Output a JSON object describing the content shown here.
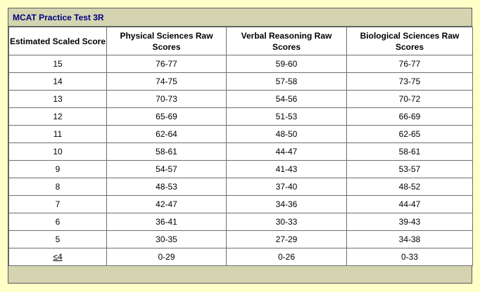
{
  "table": {
    "title": "MCAT Practice Test 3R",
    "headers": [
      "Estimated Scaled Score",
      "Physical Sciences Raw Scores",
      "Verbal Reasoning Raw Scores",
      "Biological Sciences Raw Scores"
    ],
    "rows": [
      [
        "15",
        "76-77",
        "59-60",
        "76-77"
      ],
      [
        "14",
        "74-75",
        "57-58",
        "73-75"
      ],
      [
        "13",
        "70-73",
        "54-56",
        "70-72"
      ],
      [
        "12",
        "65-69",
        "51-53",
        "66-69"
      ],
      [
        "11",
        "62-64",
        "48-50",
        "62-65"
      ],
      [
        "10",
        "58-61",
        "44-47",
        "58-61"
      ],
      [
        "9",
        "54-57",
        "41-43",
        "53-57"
      ],
      [
        "8",
        "48-53",
        "37-40",
        "48-52"
      ],
      [
        "7",
        "42-47",
        "34-36",
        "44-47"
      ],
      [
        "6",
        "36-41",
        "30-33",
        "39-43"
      ],
      [
        "5",
        "30-35",
        "27-29",
        "34-38"
      ],
      [
        "≤4",
        "0-29",
        "0-26",
        "0-33"
      ]
    ]
  },
  "colors": {
    "page_background": "#ffffc8",
    "frame_background": "#d4d5b0",
    "title_text": "#000080"
  }
}
